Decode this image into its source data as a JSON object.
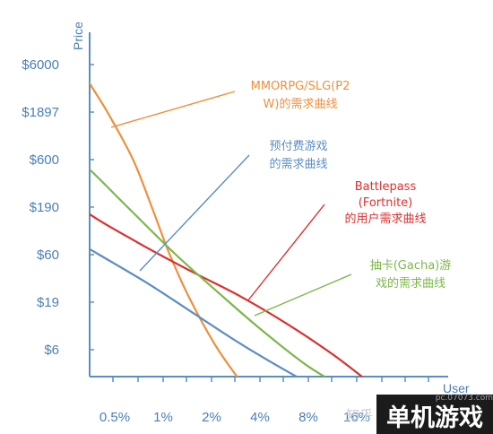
{
  "chart_data": {
    "type": "line",
    "ylabel": "Price",
    "xlabel": "User",
    "y_scale": "log",
    "y_ticks": [
      "$6000",
      "$1897",
      "$600",
      "$190",
      "$60",
      "$19",
      "$6"
    ],
    "x_ticks": [
      "0.5%",
      "1%",
      "2%",
      "4%",
      "8%",
      "16%"
    ],
    "series": [
      {
        "name": "MMORPG/SLG(P2W)的需求曲线",
        "color": "#ef8f3a",
        "points": [
          [
            0.2,
            30000
          ],
          [
            0.3,
            6000
          ],
          [
            0.45,
            1897
          ],
          [
            0.65,
            600
          ],
          [
            0.85,
            190
          ],
          [
            1.1,
            60
          ],
          [
            1.5,
            19
          ],
          [
            2.2,
            6
          ],
          [
            3.5,
            2
          ]
        ]
      },
      {
        "name": "预付费游戏的需求曲线",
        "color": "#5b8ec2",
        "points": [
          [
            0.1,
            300
          ],
          [
            0.2,
            120
          ],
          [
            0.4,
            60
          ],
          [
            0.8,
            30
          ],
          [
            1.5,
            15
          ],
          [
            3,
            7
          ],
          [
            6,
            3.5
          ],
          [
            11,
            2
          ]
        ]
      },
      {
        "name": "Battlepass (Fortnite) 的用户需求曲线",
        "color": "#dc2f2f",
        "points": [
          [
            0.1,
            800
          ],
          [
            0.3,
            190
          ],
          [
            0.7,
            80
          ],
          [
            1.5,
            40
          ],
          [
            3,
            22
          ],
          [
            6,
            11
          ],
          [
            12,
            5
          ],
          [
            24,
            2
          ]
        ]
      },
      {
        "name": "抽卡(Gacha)游戏的需求曲线",
        "color": "#7bb84a",
        "points": [
          [
            0.1,
            3000
          ],
          [
            0.3,
            600
          ],
          [
            0.6,
            190
          ],
          [
            1.2,
            60
          ],
          [
            2.2,
            24
          ],
          [
            4,
            10
          ],
          [
            8,
            4
          ],
          [
            16,
            2
          ]
        ]
      }
    ],
    "annotations": [
      {
        "lines": [
          "MMORPG/SLG(P2",
          "W)的需求曲线"
        ],
        "color": "#ef8f3a"
      },
      {
        "lines": [
          "预付费游戏",
          "的需求曲线"
        ],
        "color": "#5b8ec2"
      },
      {
        "lines": [
          "Battlepass",
          "(Fortnite)",
          "的用户需求曲线"
        ],
        "color": "#dc2f2f"
      },
      {
        "lines": [
          "抽卡(Gacha)游",
          "戏的需求曲线"
        ],
        "color": "#7bb84a"
      }
    ],
    "grid": false,
    "legend": "none"
  },
  "watermarks": {
    "zhihu": "知乎",
    "site": "pc.07073.com",
    "brand": "单机游戏"
  }
}
